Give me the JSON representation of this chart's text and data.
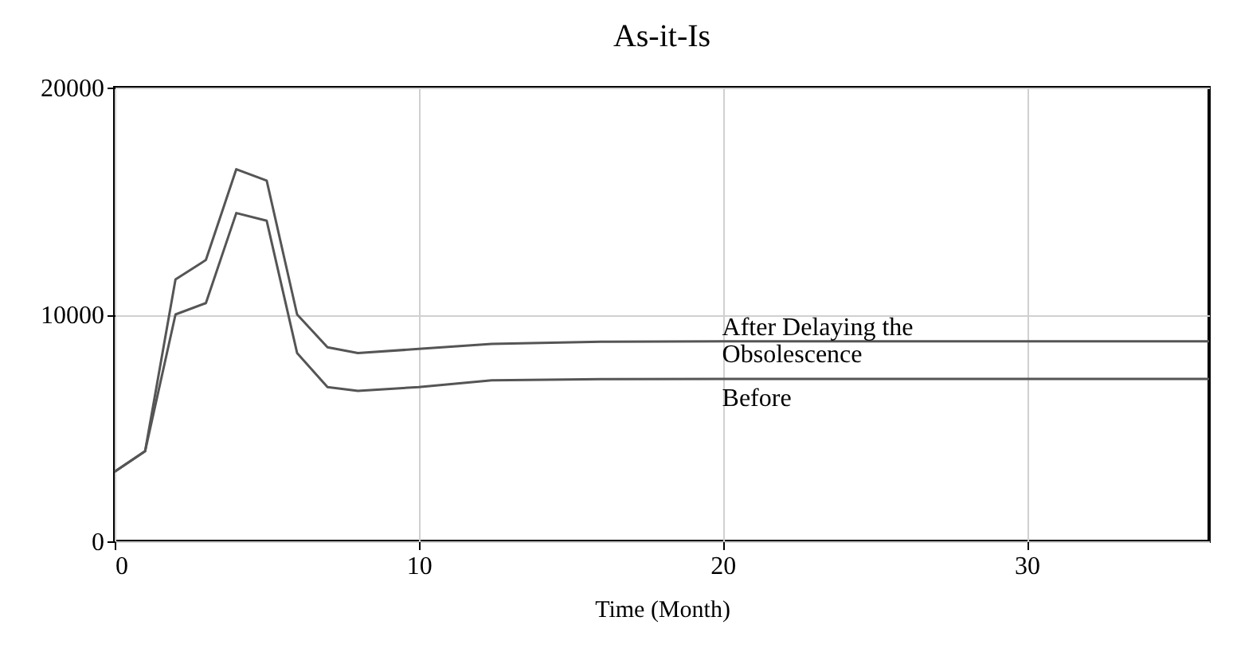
{
  "chart_data": {
    "type": "line",
    "title": "As-it-Is",
    "xlabel": "Time (Month)",
    "x": [
      0,
      1,
      2,
      3,
      4,
      5,
      6,
      7,
      8,
      10,
      12.4,
      16,
      20,
      36
    ],
    "series": [
      {
        "name": "After Delaying the Obsolescence",
        "color": "#555555",
        "values": [
          3070,
          3970,
          11540,
          12400,
          16400,
          15900,
          10000,
          8550,
          8300,
          8480,
          8700,
          8800,
          8820,
          8820
        ]
      },
      {
        "name": "Before",
        "color": "#555555",
        "values": [
          3070,
          3970,
          10000,
          10500,
          14470,
          14130,
          8300,
          6800,
          6630,
          6800,
          7100,
          7150,
          7160,
          7160
        ]
      }
    ],
    "xlim": [
      0,
      36
    ],
    "ylim": [
      0,
      20000
    ],
    "xticks": [
      0,
      10,
      20,
      30
    ],
    "yticks": [
      0,
      10000,
      20000
    ],
    "grid": true,
    "marker": "none",
    "line_style": "solid"
  }
}
